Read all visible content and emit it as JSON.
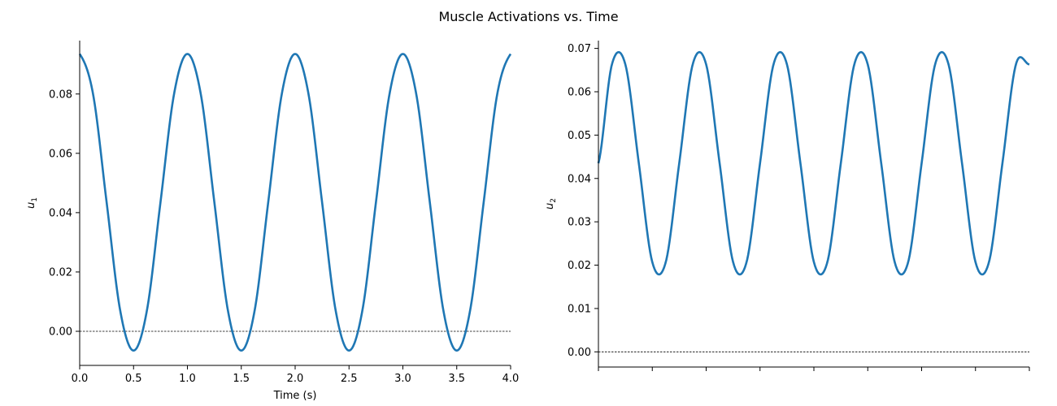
{
  "figure": {
    "title": "Muscle Activations vs. Time"
  },
  "style": {
    "line_color": "#1f77b4",
    "axis_color": "#000000",
    "zero_line_color": "#000000"
  },
  "chart_data": [
    {
      "type": "line",
      "xlabel": "Time (s)",
      "ylabel": "u",
      "ylabel_subscript": "1",
      "xlim": [
        0,
        4
      ],
      "ylim": [
        -0.0115,
        0.098
      ],
      "xticks": [
        0,
        0.5,
        1,
        1.5,
        2,
        2.5,
        3,
        3.5,
        4
      ],
      "xtick_labels": [
        "0.0",
        "0.5",
        "1.0",
        "1.5",
        "2.0",
        "2.5",
        "3.0",
        "3.5",
        "4.0"
      ],
      "yticks": [
        0,
        0.02,
        0.04,
        0.06,
        0.08
      ],
      "ytick_labels": [
        "0.00",
        "0.02",
        "0.04",
        "0.06",
        "0.08"
      ],
      "zero_line": true,
      "grid": false,
      "series": [
        {
          "x": [
            0,
            0.125,
            0.25,
            0.375,
            0.5,
            0.625,
            0.75,
            0.875,
            1,
            1.125,
            1.25,
            1.375,
            1.5,
            1.625,
            1.75,
            1.875,
            2,
            2.125,
            2.25,
            2.375,
            2.5,
            2.625,
            2.75,
            2.875,
            3,
            3.125,
            3.25,
            3.375,
            3.5,
            3.625,
            3.75,
            3.875,
            4
          ],
          "y": [
            0.0935,
            0.0798,
            0.0435,
            0.0072,
            -0.0065,
            0.0072,
            0.0435,
            0.0798,
            0.0935,
            0.0798,
            0.0435,
            0.0072,
            -0.0065,
            0.0072,
            0.0435,
            0.0798,
            0.0935,
            0.0798,
            0.0435,
            0.0072,
            -0.0065,
            0.0072,
            0.0435,
            0.0798,
            0.0935,
            0.0798,
            0.0435,
            0.0072,
            -0.0065,
            0.0072,
            0.0435,
            0.0798,
            0.0935
          ]
        }
      ]
    },
    {
      "type": "line",
      "xlabel": "",
      "ylabel": "u",
      "ylabel_subscript": "2",
      "xlim": [
        0,
        4
      ],
      "ylim": [
        -0.0035,
        0.0718
      ],
      "xticks": [
        0,
        0.5,
        1,
        1.5,
        2,
        2.5,
        3,
        3.5,
        4
      ],
      "xtick_labels": [],
      "yticks": [
        0,
        0.01,
        0.02,
        0.03,
        0.04,
        0.05,
        0.06,
        0.07
      ],
      "ytick_labels": [
        "0.00",
        "0.01",
        "0.02",
        "0.03",
        "0.04",
        "0.05",
        "0.06",
        "0.07"
      ],
      "zero_line": true,
      "grid": false,
      "series": [
        {
          "x": [
            0,
            0.125,
            0.25,
            0.375,
            0.5,
            0.625,
            0.75,
            0.875,
            1,
            1.125,
            1.25,
            1.375,
            1.5,
            1.625,
            1.75,
            1.875,
            2,
            2.125,
            2.25,
            2.375,
            2.5,
            2.625,
            2.75,
            2.875,
            3,
            3.125,
            3.25,
            3.375,
            3.5,
            3.625,
            3.75,
            3.875,
            4
          ],
          "y": [
            0.0435,
            0.0663,
            0.0663,
            0.0435,
            0.0207,
            0.0207,
            0.0435,
            0.0663,
            0.0663,
            0.0435,
            0.0207,
            0.0207,
            0.0435,
            0.0663,
            0.0663,
            0.0435,
            0.0207,
            0.0207,
            0.0435,
            0.0663,
            0.0663,
            0.0435,
            0.0207,
            0.0207,
            0.0435,
            0.0663,
            0.0663,
            0.0435,
            0.0207,
            0.0207,
            0.0435,
            0.0663,
            0.0663
          ]
        }
      ]
    }
  ]
}
